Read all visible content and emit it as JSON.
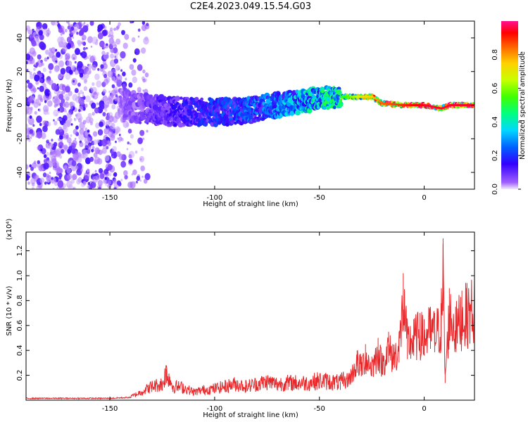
{
  "title": "C2E4.2023.049.15.54.G03",
  "chart_data": [
    {
      "type": "heatmap",
      "xlabel": "Height of straight line (km)",
      "ylabel": "Frequency (Hz)",
      "xlim": [
        -190,
        24
      ],
      "ylim": [
        -50,
        50
      ],
      "xticks": [
        -150,
        -100,
        -50,
        0
      ],
      "yticks": [
        -40,
        -20,
        0,
        20,
        40
      ],
      "grid": false,
      "colorbar": {
        "label": "Normalized spectral amplitude",
        "range": [
          0.0,
          1.0
        ],
        "ticks": [
          "0.0",
          "0.2",
          "0.4",
          "0.6",
          "0.8"
        ],
        "colormap": "rainbow"
      },
      "ridge": {
        "x": [
          -145,
          -130,
          -115,
          -100,
          -90,
          -80,
          -70,
          -60,
          -50,
          -40,
          -30,
          -25,
          -20,
          -10,
          0,
          8,
          12,
          24
        ],
        "freq": [
          0,
          -3,
          -4,
          -4,
          -4,
          -2,
          0,
          2,
          4,
          5,
          5,
          5,
          1,
          0,
          0,
          -2,
          0,
          0
        ],
        "amplitude": [
          0.05,
          0.1,
          0.15,
          0.2,
          0.22,
          0.25,
          0.3,
          0.35,
          0.4,
          0.5,
          0.7,
          0.75,
          0.85,
          0.9,
          0.95,
          0.95,
          0.95,
          0.95
        ]
      }
    },
    {
      "type": "line",
      "xlabel": "Height of straight line (km)",
      "ylabel": "SNR (10 * v/v)",
      "yscale_label": "(x10⁴)",
      "xlim": [
        -190,
        24
      ],
      "ylim": [
        0,
        1.35
      ],
      "xticks": [
        -150,
        -100,
        -50,
        0
      ],
      "yticks": [
        0.2,
        0.4,
        0.6,
        0.8,
        1.0,
        1.2
      ],
      "grid": false,
      "series": [
        {
          "color": "#e8282b",
          "x": [
            -190,
            -180,
            -170,
            -160,
            -150,
            -140,
            -135,
            -130,
            -125,
            -123,
            -120,
            -115,
            -110,
            -105,
            -100,
            -95,
            -90,
            -85,
            -80,
            -75,
            -70,
            -65,
            -60,
            -55,
            -50,
            -45,
            -40,
            -35,
            -32,
            -30,
            -28,
            -25,
            -22,
            -20,
            -17,
            -15,
            -12,
            -10,
            -8,
            -5,
            -2,
            0,
            3,
            5,
            8,
            9,
            10,
            12,
            15,
            18,
            20,
            24
          ],
          "y": [
            0.02,
            0.02,
            0.02,
            0.02,
            0.02,
            0.03,
            0.07,
            0.12,
            0.14,
            0.25,
            0.12,
            0.11,
            0.07,
            0.09,
            0.1,
            0.12,
            0.14,
            0.12,
            0.14,
            0.16,
            0.14,
            0.15,
            0.15,
            0.15,
            0.17,
            0.16,
            0.15,
            0.25,
            0.4,
            0.35,
            0.45,
            0.35,
            0.5,
            0.38,
            0.55,
            0.45,
            0.55,
            1.02,
            0.6,
            0.65,
            0.7,
            0.65,
            0.75,
            0.7,
            0.78,
            1.3,
            0.25,
            0.9,
            0.75,
            0.88,
            0.9,
            0.98
          ]
        }
      ]
    }
  ]
}
